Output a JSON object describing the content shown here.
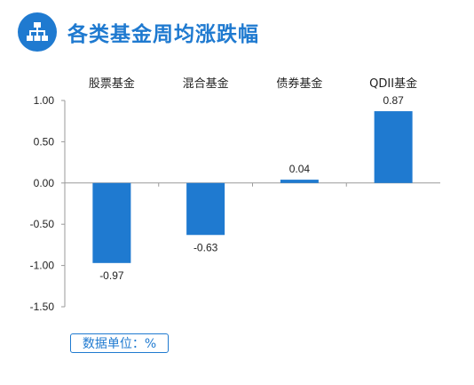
{
  "header": {
    "title": "各类基金周均涨跌幅",
    "icon": "hierarchy-icon",
    "accent_color": "#1f7ad0"
  },
  "unit_note": "数据单位：%",
  "chart_data": {
    "type": "bar",
    "title": "各类基金周均涨跌幅",
    "categories": [
      "股票基金",
      "混合基金",
      "债券基金",
      "QDII基金"
    ],
    "values": [
      -0.97,
      -0.63,
      0.04,
      0.87
    ],
    "value_labels": [
      "-0.97",
      "-0.63",
      "0.04",
      "0.87"
    ],
    "ylim": [
      -1.5,
      1.0
    ],
    "yticks": [
      1.0,
      0.5,
      0.0,
      -0.5,
      -1.0,
      -1.5
    ],
    "ytick_labels": [
      "1.00",
      "0.50",
      "0.00",
      "-0.50",
      "-1.00",
      "-1.50"
    ],
    "category_labels_position": "top",
    "grid": false,
    "bar_color": "#1f7ad0"
  }
}
